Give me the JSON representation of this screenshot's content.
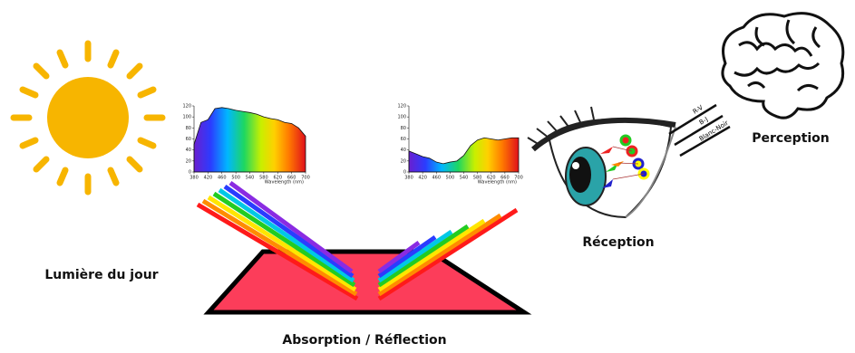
{
  "labels": {
    "daylight": "Lumière du jour",
    "absorption": "Absorption / Réflection",
    "reception": "Réception",
    "perception": "Perception",
    "channels": [
      "R-V",
      "B-J",
      "Blanc-Noir"
    ]
  },
  "spectra": [
    {
      "x": [
        380,
        400,
        420,
        440,
        460,
        480,
        500,
        520,
        540,
        560,
        580,
        600,
        620,
        640,
        660,
        680,
        700
      ],
      "values": [
        50,
        90,
        95,
        115,
        117,
        115,
        112,
        110,
        108,
        105,
        100,
        97,
        95,
        90,
        88,
        80,
        65
      ],
      "xlim": [
        380,
        700
      ],
      "ylim": [
        0,
        120
      ],
      "xticks": [
        380,
        420,
        460,
        500,
        540,
        580,
        620,
        660,
        700
      ],
      "yticks": [
        0,
        20,
        40,
        60,
        80,
        100,
        120
      ],
      "x_label": "Wavelength (nm)"
    },
    {
      "x": [
        380,
        400,
        420,
        440,
        460,
        480,
        500,
        520,
        540,
        560,
        580,
        600,
        620,
        640,
        660,
        680,
        700
      ],
      "values": [
        38,
        33,
        28,
        25,
        18,
        15,
        18,
        20,
        30,
        48,
        58,
        62,
        60,
        58,
        60,
        62,
        62
      ],
      "xlim": [
        380,
        700
      ],
      "ylim": [
        0,
        120
      ],
      "xticks": [
        380,
        420,
        460,
        500,
        540,
        580,
        620,
        660,
        700
      ],
      "yticks": [
        0,
        20,
        40,
        60,
        80,
        100,
        120
      ],
      "x_label": "Wavelength (nm)"
    }
  ]
}
